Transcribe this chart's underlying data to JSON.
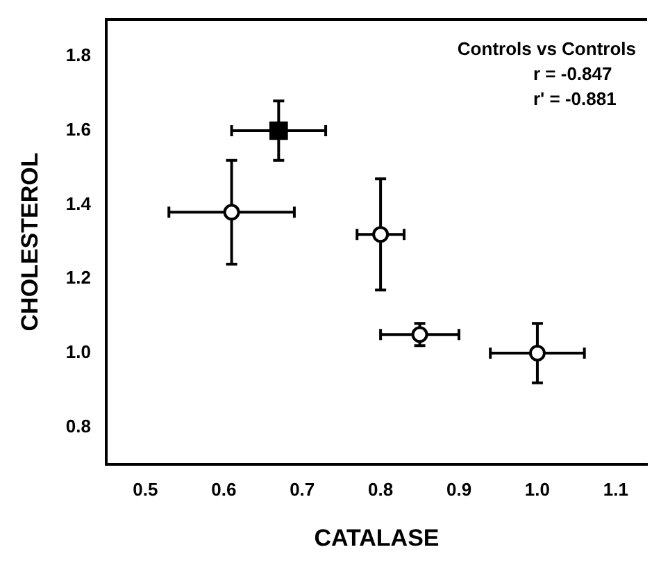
{
  "chart_data": {
    "type": "scatter",
    "xlabel": "CATALASE",
    "ylabel": "CHOLESTEROL",
    "annotations": [
      "Controls vs Controls",
      "r = -0.847",
      "r' = -0.881"
    ],
    "series": [
      {
        "color": "#000000",
        "marker": "square",
        "x": [
          0.67
        ],
        "values": [
          1.6
        ],
        "errors": [
          0.08
        ],
        "xerrors": [
          0.06
        ]
      },
      {
        "color": "#000000",
        "marker": "circle",
        "x": [
          0.61,
          0.8,
          0.85,
          1.0
        ],
        "values": [
          1.38,
          1.32,
          1.05,
          1.0
        ],
        "errors": [
          0.14,
          0.15,
          0.03,
          0.08
        ],
        "xerrors": [
          0.08,
          0.03,
          0.05,
          0.06
        ]
      }
    ],
    "xlim": [
      0.45,
      1.14
    ],
    "xticks": [
      0.5,
      0.6,
      0.7,
      0.8,
      0.9,
      {
        "value": 1.0,
        "label": "1.0"
      },
      1.1
    ],
    "ylim": [
      0.7,
      1.9
    ],
    "yticks": [
      0.8,
      {
        "value": 1.0,
        "label": "1.0"
      },
      1.2,
      1.4,
      1.6,
      1.8
    ],
    "grid": false,
    "legend": false
  }
}
